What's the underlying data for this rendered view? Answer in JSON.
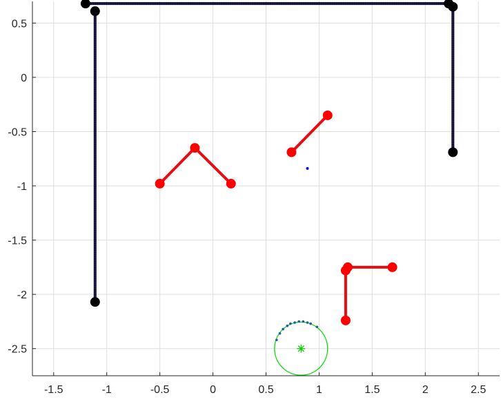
{
  "chart_data": {
    "type": "scatter",
    "title": "",
    "xlabel": "",
    "ylabel": "",
    "xlim": [
      -1.7,
      2.7
    ],
    "ylim": [
      -2.75,
      0.7
    ],
    "grid": true,
    "x_ticks": [
      -1.5,
      -1,
      -0.5,
      0,
      0.5,
      1,
      1.5,
      2,
      2.5
    ],
    "x_tick_labels": [
      "-1.5",
      "-1",
      "-0.5",
      "0",
      "0.5",
      "1",
      "1.5",
      "2",
      "2.5"
    ],
    "y_ticks": [
      0.5,
      0,
      -0.5,
      -1,
      -1.5,
      -2,
      -2.5
    ],
    "y_tick_labels": [
      "0.5",
      "0",
      "-0.5",
      "-1",
      "-1.5",
      "-2",
      "-2.5"
    ],
    "colors": {
      "wall": "#000000",
      "wall_line": "#1a1a4d",
      "obstacle": "#ff0000",
      "obstacle_line": "#e0101a",
      "robot_dot": "#0000ff",
      "robot_circle": "#00dd00",
      "robot_center": "#00cc00",
      "sensor_arc": "#1f5fa0",
      "grid": "#dedede",
      "axis": "#262626"
    },
    "walls": [
      {
        "points": [
          [
            -1.2,
            0.68
          ],
          [
            2.22,
            0.68
          ]
        ]
      },
      {
        "points": [
          [
            -1.11,
            0.61
          ],
          [
            -1.11,
            -2.07
          ]
        ]
      },
      {
        "points": [
          [
            2.26,
            0.65
          ],
          [
            2.26,
            -0.69
          ]
        ]
      }
    ],
    "wall_markers": [
      [
        -1.2,
        0.68
      ],
      [
        2.22,
        0.68
      ],
      [
        -1.11,
        0.61
      ],
      [
        -1.11,
        -2.07
      ],
      [
        2.26,
        0.65
      ],
      [
        2.26,
        -0.69
      ]
    ],
    "obstacles": [
      {
        "points": [
          [
            -0.5,
            -0.98
          ],
          [
            -0.17,
            -0.65
          ],
          [
            0.17,
            -0.98
          ]
        ]
      },
      {
        "points": [
          [
            0.74,
            -0.69
          ],
          [
            1.08,
            -0.35
          ]
        ]
      },
      {
        "points": [
          [
            1.69,
            -1.75
          ],
          [
            1.27,
            -1.75
          ],
          [
            1.25,
            -1.78
          ],
          [
            1.25,
            -2.24
          ]
        ]
      }
    ],
    "obstacle_markers": [
      [
        -0.5,
        -0.98
      ],
      [
        -0.17,
        -0.65
      ],
      [
        0.17,
        -0.98
      ],
      [
        0.74,
        -0.69
      ],
      [
        1.08,
        -0.35
      ],
      [
        1.69,
        -1.75
      ],
      [
        1.27,
        -1.75
      ],
      [
        1.25,
        -1.78
      ],
      [
        1.25,
        -2.24
      ]
    ],
    "target_point": [
      0.89,
      -0.84
    ],
    "robot": {
      "center": [
        0.83,
        -2.5
      ],
      "radius": 0.25
    },
    "sensor_arc_points": [
      [
        0.6,
        -2.42
      ],
      [
        0.63,
        -2.36
      ],
      [
        0.66,
        -2.32
      ],
      [
        0.7,
        -2.29
      ],
      [
        0.73,
        -2.27
      ],
      [
        0.77,
        -2.26
      ],
      [
        0.81,
        -2.25
      ],
      [
        0.85,
        -2.25
      ],
      [
        0.89,
        -2.26
      ],
      [
        0.92,
        -2.27
      ],
      [
        0.98,
        -2.3
      ]
    ]
  }
}
